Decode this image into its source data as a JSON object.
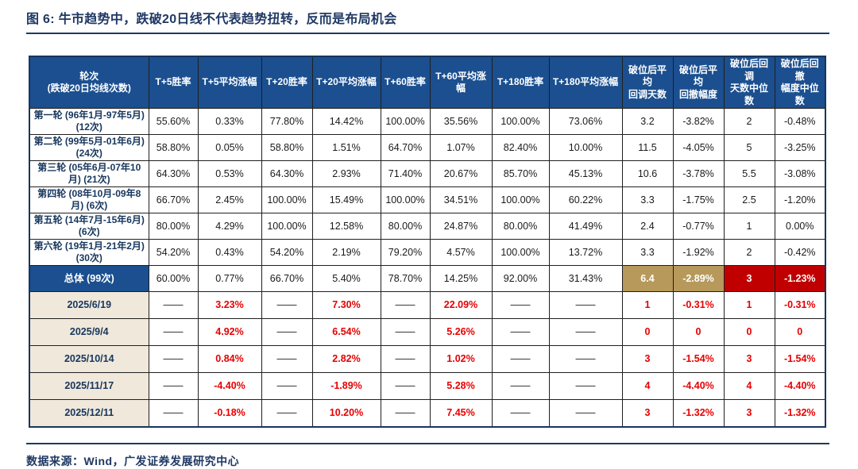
{
  "figure": {
    "title": "图 6: 牛市趋势中，跌破20日线不代表趋势扭转，反而是布局机会",
    "source": "数据来源：Wind，广发证券发展研究中心"
  },
  "colors": {
    "navy_text": "#1F3864",
    "header_bg": "#1B4F8F",
    "total_label_bg": "#1B4F8F",
    "date_label_bg": "#EFE8DB",
    "tan_highlight_bg": "#B6995B",
    "red_highlight_bg": "#C00000",
    "red_value_text": "#E60000"
  },
  "chart_data": {
    "type": "table",
    "columns": [
      "轮次\n(跌破20日均线次数)",
      "T+5胜率",
      "T+5平均涨幅",
      "T+20胜率",
      "T+20平均涨幅",
      "T+60胜率",
      "T+60平均涨\n幅",
      "T+180胜率",
      "T+180平均涨幅",
      "破位后平均\n回调天数",
      "破位后平均\n回撤幅度",
      "破位后回调\n天数中位数",
      "破位后回撤\n幅度中位数"
    ],
    "rows": [
      {
        "type": "round",
        "label": "第一轮 (96年1月-97年5月)\n(12次)",
        "values": [
          "55.60%",
          "0.33%",
          "77.80%",
          "14.42%",
          "100.00%",
          "35.56%",
          "100.00%",
          "73.06%",
          "3.2",
          "-3.82%",
          "2",
          "-0.48%"
        ]
      },
      {
        "type": "round",
        "label": "第二轮 (99年5月-01年6月)\n(24次)",
        "values": [
          "58.80%",
          "0.05%",
          "58.80%",
          "1.51%",
          "64.70%",
          "1.07%",
          "82.40%",
          "10.00%",
          "11.5",
          "-4.05%",
          "5",
          "-3.25%"
        ]
      },
      {
        "type": "round",
        "label": "第三轮 (05年6月-07年10月) (21次)",
        "values": [
          "64.30%",
          "0.53%",
          "64.30%",
          "2.93%",
          "71.40%",
          "20.67%",
          "85.70%",
          "45.13%",
          "10.6",
          "-3.78%",
          "5.5",
          "-3.08%"
        ]
      },
      {
        "type": "round",
        "label": "第四轮 (08年10月-09年8月) (6次)",
        "values": [
          "66.70%",
          "2.45%",
          "100.00%",
          "15.49%",
          "100.00%",
          "34.51%",
          "100.00%",
          "60.22%",
          "3.3",
          "-1.75%",
          "2.5",
          "-1.20%"
        ]
      },
      {
        "type": "round",
        "label": "第五轮 (14年7月-15年6月)\n(6次)",
        "values": [
          "80.00%",
          "4.29%",
          "100.00%",
          "12.58%",
          "80.00%",
          "24.87%",
          "80.00%",
          "41.49%",
          "2.4",
          "-0.77%",
          "1",
          "0.00%"
        ]
      },
      {
        "type": "round",
        "label": "第六轮 (19年1月-21年2月)\n(30次)",
        "values": [
          "54.20%",
          "0.43%",
          "54.20%",
          "2.19%",
          "79.20%",
          "4.57%",
          "100.00%",
          "13.72%",
          "3.3",
          "-1.92%",
          "2",
          "-0.42%"
        ]
      },
      {
        "type": "total",
        "label": "总体 (99次)",
        "values": [
          "60.00%",
          "0.77%",
          "66.70%",
          "5.40%",
          "78.70%",
          "14.25%",
          "92.00%",
          "31.43%",
          "6.4",
          "-2.89%",
          "3",
          "-1.23%"
        ]
      },
      {
        "type": "date",
        "label": "2025/6/19",
        "values": [
          "——",
          "3.23%",
          "——",
          "7.30%",
          "——",
          "22.09%",
          "——",
          "——",
          "1",
          "-0.31%",
          "1",
          "-0.31%"
        ]
      },
      {
        "type": "date",
        "label": "2025/9/4",
        "values": [
          "——",
          "4.92%",
          "——",
          "6.54%",
          "——",
          "5.26%",
          "——",
          "——",
          "0",
          "0",
          "0",
          "0"
        ]
      },
      {
        "type": "date",
        "label": "2025/10/14",
        "values": [
          "——",
          "0.84%",
          "——",
          "2.82%",
          "——",
          "1.02%",
          "——",
          "——",
          "3",
          "-1.54%",
          "3",
          "-1.54%"
        ]
      },
      {
        "type": "date",
        "label": "2025/11/17",
        "values": [
          "——",
          "-4.40%",
          "——",
          "-1.89%",
          "——",
          "5.28%",
          "——",
          "——",
          "4",
          "-4.40%",
          "4",
          "-4.40%"
        ]
      },
      {
        "type": "date",
        "label": "2025/12/11",
        "values": [
          "——",
          "-0.18%",
          "——",
          "10.20%",
          "——",
          "7.45%",
          "——",
          "——",
          "3",
          "-1.32%",
          "3",
          "-1.32%"
        ]
      }
    ]
  }
}
